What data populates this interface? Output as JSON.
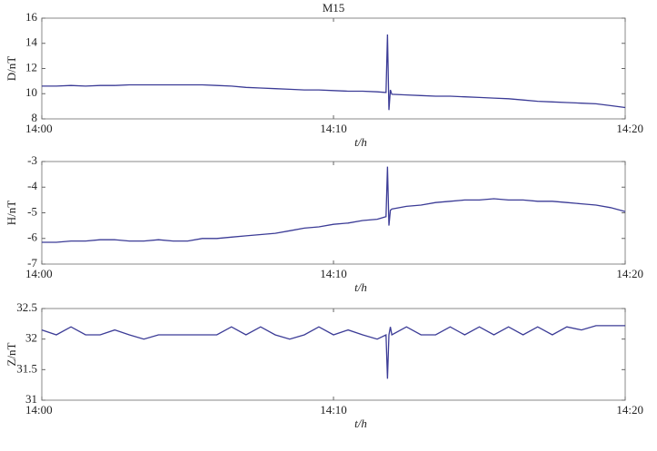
{
  "chart_data": [
    {
      "type": "line",
      "title": "M15",
      "xlabel": "t/h",
      "ylabel": "D/nT",
      "xlim": [
        0,
        20
      ],
      "xticks": [
        {
          "value": 0,
          "label": "14:00"
        },
        {
          "value": 10,
          "label": "14:10"
        },
        {
          "value": 20,
          "label": "14:20"
        }
      ],
      "ylim": [
        8,
        16
      ],
      "yticks": [
        8,
        10,
        12,
        14,
        16
      ],
      "x": [
        0,
        0.5,
        1,
        1.5,
        2,
        2.5,
        3,
        3.5,
        4,
        4.5,
        5,
        5.5,
        6,
        6.5,
        7,
        7.5,
        8,
        8.5,
        9,
        9.5,
        10,
        10.5,
        11,
        11.5,
        11.8,
        11.85,
        11.9,
        11.95,
        12,
        12.5,
        13,
        13.5,
        14,
        14.5,
        15,
        15.5,
        16,
        16.5,
        17,
        17.5,
        18,
        18.5,
        19,
        19.5,
        20
      ],
      "series": [
        {
          "color": "#3b3b96",
          "values": [
            10.6,
            10.6,
            10.65,
            10.6,
            10.65,
            10.65,
            10.7,
            10.7,
            10.7,
            10.7,
            10.7,
            10.7,
            10.65,
            10.6,
            10.5,
            10.45,
            10.4,
            10.35,
            10.3,
            10.3,
            10.25,
            10.2,
            10.2,
            10.15,
            10.1,
            14.7,
            8.7,
            10.3,
            9.95,
            9.9,
            9.85,
            9.8,
            9.8,
            9.75,
            9.7,
            9.65,
            9.6,
            9.5,
            9.4,
            9.35,
            9.3,
            9.25,
            9.2,
            9.05,
            8.9
          ]
        }
      ]
    },
    {
      "type": "line",
      "xlabel": "t/h",
      "ylabel": "H/nT",
      "xlim": [
        0,
        20
      ],
      "xticks": [
        {
          "value": 0,
          "label": "14:00"
        },
        {
          "value": 10,
          "label": "14:10"
        },
        {
          "value": 20,
          "label": "14:20"
        }
      ],
      "ylim": [
        -7,
        -3
      ],
      "yticks": [
        -7,
        -6,
        -5,
        -4,
        -3
      ],
      "x": [
        0,
        0.5,
        1,
        1.5,
        2,
        2.5,
        3,
        3.5,
        4,
        4.5,
        5,
        5.5,
        6,
        6.5,
        7,
        7.5,
        8,
        8.5,
        9,
        9.5,
        10,
        10.5,
        11,
        11.5,
        11.8,
        11.85,
        11.9,
        11.95,
        12,
        12.5,
        13,
        13.5,
        14,
        14.5,
        15,
        15.5,
        16,
        16.5,
        17,
        17.5,
        18,
        18.5,
        19,
        19.5,
        20
      ],
      "series": [
        {
          "color": "#3b3b96",
          "values": [
            -6.15,
            -6.15,
            -6.1,
            -6.1,
            -6.05,
            -6.05,
            -6.1,
            -6.1,
            -6.05,
            -6.1,
            -6.1,
            -6.0,
            -6.0,
            -5.95,
            -5.9,
            -5.85,
            -5.8,
            -5.7,
            -5.6,
            -5.55,
            -5.45,
            -5.4,
            -5.3,
            -5.25,
            -5.15,
            -3.2,
            -5.5,
            -4.9,
            -4.85,
            -4.75,
            -4.7,
            -4.6,
            -4.55,
            -4.5,
            -4.5,
            -4.45,
            -4.5,
            -4.5,
            -4.55,
            -4.55,
            -4.6,
            -4.65,
            -4.7,
            -4.8,
            -4.95
          ]
        }
      ]
    },
    {
      "type": "line",
      "xlabel": "t/h",
      "ylabel": "Z/nT",
      "xlim": [
        0,
        20
      ],
      "xticks": [
        {
          "value": 0,
          "label": "14:00"
        },
        {
          "value": 10,
          "label": "14:10"
        },
        {
          "value": 20,
          "label": "14:20"
        }
      ],
      "ylim": [
        31,
        32.5
      ],
      "yticks": [
        31,
        31.5,
        32,
        32.5
      ],
      "x": [
        0,
        0.5,
        1,
        1.5,
        2,
        2.5,
        3,
        3.5,
        4,
        4.5,
        5,
        5.5,
        6,
        6.5,
        7,
        7.5,
        8,
        8.5,
        9,
        9.5,
        10,
        10.5,
        11,
        11.5,
        11.8,
        11.85,
        11.9,
        11.95,
        12,
        12.5,
        13,
        13.5,
        14,
        14.5,
        15,
        15.5,
        16,
        16.5,
        17,
        17.5,
        18,
        18.5,
        19,
        19.5,
        20
      ],
      "series": [
        {
          "color": "#3b3b96",
          "values": [
            32.15,
            32.07,
            32.2,
            32.07,
            32.07,
            32.15,
            32.07,
            32.0,
            32.07,
            32.07,
            32.07,
            32.07,
            32.07,
            32.2,
            32.07,
            32.2,
            32.07,
            32.0,
            32.07,
            32.2,
            32.07,
            32.15,
            32.07,
            32.0,
            32.07,
            31.35,
            32.07,
            32.2,
            32.07,
            32.2,
            32.07,
            32.07,
            32.2,
            32.07,
            32.2,
            32.07,
            32.2,
            32.07,
            32.2,
            32.07,
            32.2,
            32.15,
            32.22,
            32.22,
            32.22
          ]
        }
      ]
    }
  ]
}
